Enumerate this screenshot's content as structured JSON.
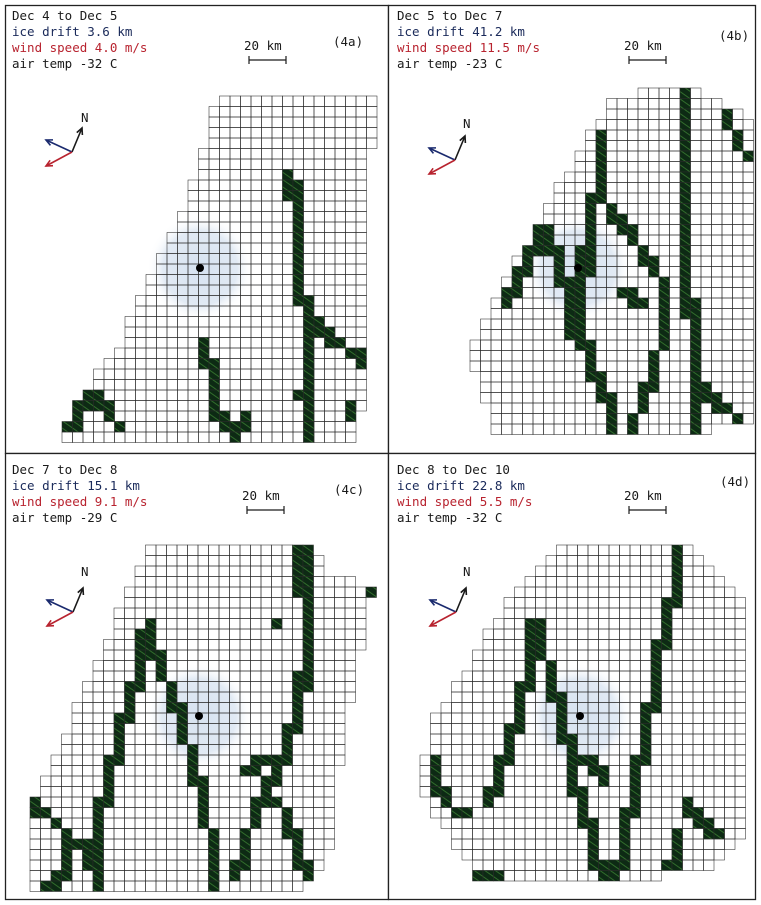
{
  "colors": {
    "grid_line": "#2a2a2a",
    "lead_fill": "#0d2a14",
    "lead_hatch": "#4a9a3c",
    "shade": "#dce6f2",
    "drift_arrow": "#1a2a6e",
    "wind_arrow": "#b8232f",
    "north_arrow": "#1a1a1a",
    "frame": "#222222",
    "text_black": "#1a1a1a",
    "text_navy": "#1a2a5a",
    "text_red": "#b8232f"
  },
  "panels": [
    {
      "id": "4a",
      "tag": "(4a)",
      "period": "Dec 4 to Dec 5",
      "ice_drift": "ice drift  3.6 km",
      "wind_speed": "wind speed  4.0 m/s",
      "air_temp": "air temp  -32 C",
      "scale": "20 km",
      "north": "N"
    },
    {
      "id": "4b",
      "tag": "(4b)",
      "period": "Dec 5 to Dec 7",
      "ice_drift": "ice drift  41.2 km",
      "wind_speed": "wind speed  11.5 m/s",
      "air_temp": "air temp  -23 C",
      "scale": "20 km",
      "north": "N"
    },
    {
      "id": "4c",
      "tag": "(4c)",
      "period": "Dec 7 to Dec 8",
      "ice_drift": "ice drift  15.1 km",
      "wind_speed": "wind speed  9.1 m/s",
      "air_temp": "air temp  -29 C",
      "scale": "20 km",
      "north": "N"
    },
    {
      "id": "4d",
      "tag": "(4d)",
      "period": "Dec 8 to Dec 10",
      "ice_drift": "ice drift  22.8 km",
      "wind_speed": "wind speed  5.5 m/s",
      "air_temp": "air temp  -32 C",
      "scale": "20 km",
      "north": "N"
    }
  ]
}
